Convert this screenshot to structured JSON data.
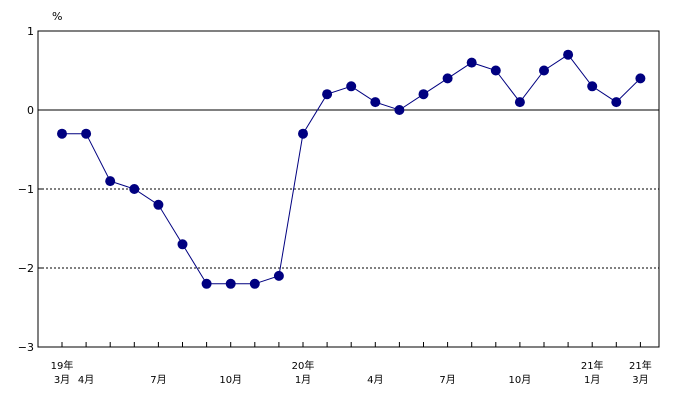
{
  "chart_data": {
    "type": "line",
    "unit_label": "%",
    "ylim": [
      -3,
      1
    ],
    "y_ticks": [
      1,
      0,
      -1,
      -2,
      -3
    ],
    "y_tick_labels": [
      "1",
      "0",
      "−1",
      "−2",
      "−3"
    ],
    "gridlines": {
      "dashed_at": [
        -1,
        -2
      ],
      "solid_at": [
        0
      ]
    },
    "x_month_labels": [
      {
        "index": 0,
        "label": "3月"
      },
      {
        "index": 1,
        "label": "4月"
      },
      {
        "index": 4,
        "label": "7月"
      },
      {
        "index": 7,
        "label": "10月"
      },
      {
        "index": 10,
        "label": "1月"
      },
      {
        "index": 13,
        "label": "4月"
      },
      {
        "index": 16,
        "label": "7月"
      },
      {
        "index": 19,
        "label": "10月"
      },
      {
        "index": 22,
        "label": "1月"
      },
      {
        "index": 24,
        "label": "3月"
      }
    ],
    "x_year_labels": [
      {
        "index": 0,
        "label": "19年"
      },
      {
        "index": 10,
        "label": "20年"
      },
      {
        "index": 22,
        "label": "21年"
      },
      {
        "index": 24,
        "label": "21年"
      }
    ],
    "series": [
      {
        "color": "#000080",
        "values": [
          -0.3,
          -0.3,
          -0.9,
          -1.0,
          -1.2,
          -1.7,
          -2.2,
          -2.2,
          -2.2,
          -2.1,
          -0.3,
          0.2,
          0.3,
          0.1,
          0.0,
          0.2,
          0.4,
          0.6,
          0.5,
          0.1,
          0.5,
          0.7,
          0.3,
          0.1,
          0.4
        ]
      }
    ]
  }
}
